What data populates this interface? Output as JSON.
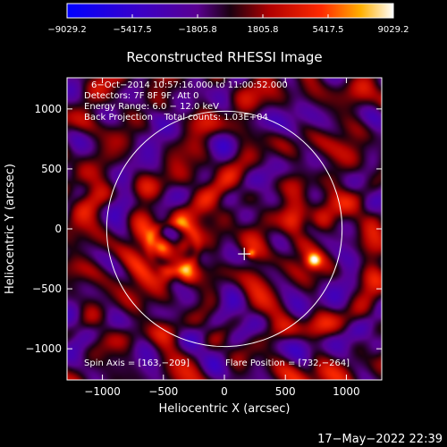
{
  "chart_data": {
    "type": "heatmap",
    "title": "Reconstructed RHESSI Image",
    "xlabel": "Heliocentric X (arcsec)",
    "ylabel": "Heliocentric Y (arcsec)",
    "xlim": [
      -1290,
      1290
    ],
    "ylim": [
      -1260,
      1260
    ],
    "xticks": [
      -1000,
      -500,
      0,
      500,
      1000
    ],
    "yticks": [
      -1000,
      -500,
      0,
      500,
      1000
    ],
    "xtick_labels": [
      "−1000",
      "−500",
      "0",
      "500",
      "1000"
    ],
    "ytick_labels": [
      "−1000",
      "−500",
      "0",
      "500",
      "1000"
    ],
    "colorbar": {
      "min": -9029.2,
      "max": 9029.2,
      "ticks": [
        -9029.2,
        -5417.5,
        -1805.8,
        1805.8,
        5417.5,
        9029.2
      ],
      "tick_labels": [
        "−9029.2",
        "−5417.5",
        "−1805.8",
        "1805.8",
        "5417.5",
        "9029.2"
      ]
    },
    "annotations": [
      "6−Oct−2014 10:57:16.000 to 11:00:52.000",
      "Detectors: 7F 8F 9F, Att 0",
      "Energy Range: 6.0 − 12.0 keV",
      "Back Projection    Total counts: 1.03E+04"
    ],
    "spin_axis_label": "Spin Axis = [163,−209]",
    "flare_position_label": "Flare Position = [732,−264]",
    "spin_axis": [
      163,
      -209
    ],
    "flare_position": [
      732,
      -264
    ],
    "solar_limb_radius_arcsec": 965,
    "blobs": [
      {
        "x": 732,
        "y": -264,
        "amp": 9029,
        "sigma": 45
      },
      {
        "x": -500,
        "y": -155,
        "amp": 5200,
        "sigma": 55
      },
      {
        "x": -340,
        "y": -140,
        "amp": 4500,
        "sigma": 55
      },
      {
        "x": -470,
        "y": -380,
        "amp": 5600,
        "sigma": 55
      },
      {
        "x": -360,
        "y": 75,
        "amp": 3800,
        "sigma": 55
      },
      {
        "x": -310,
        "y": -380,
        "amp": 4800,
        "sigma": 55
      },
      {
        "x": 560,
        "y": 60,
        "amp": 3800,
        "sigma": 70
      },
      {
        "x": 800,
        "y": 70,
        "amp": 3800,
        "sigma": 70
      },
      {
        "x": 220,
        "y": -205,
        "amp": 4800,
        "sigma": 25
      }
    ],
    "footer_date": "17−May−2022 22:39"
  }
}
